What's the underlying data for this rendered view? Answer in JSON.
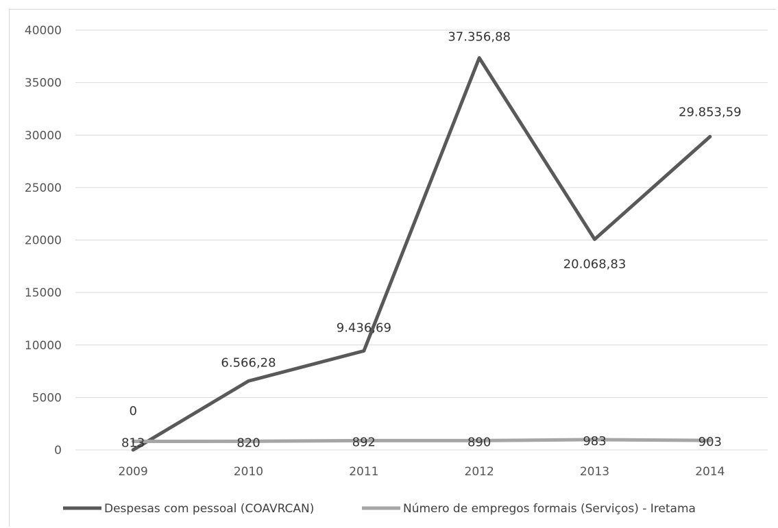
{
  "chart_data": {
    "type": "line",
    "categories": [
      "2009",
      "2010",
      "2011",
      "2012",
      "2013",
      "2014"
    ],
    "ylim": [
      0,
      40000
    ],
    "yticks": [
      0,
      5000,
      10000,
      15000,
      20000,
      25000,
      30000,
      35000,
      40000
    ],
    "grid": true,
    "legend_position": "bottom",
    "series": [
      {
        "name": "Despesas com pessoal (COAVRCAN)",
        "color": "#595959",
        "values": [
          0,
          6566.28,
          9436.69,
          37356.88,
          20068.83,
          29853.59
        ],
        "labels": [
          "0",
          "6.566,28",
          "9.436,69",
          "37.356,88",
          "20.068,83",
          "29.853,59"
        ]
      },
      {
        "name": "Número de empregos formais (Serviços) - Iretama",
        "color": "#a6a6a6",
        "values": [
          813,
          820,
          892,
          890,
          983,
          903
        ],
        "labels": [
          "813",
          "820",
          "892",
          "890",
          "983",
          "903"
        ]
      }
    ]
  }
}
